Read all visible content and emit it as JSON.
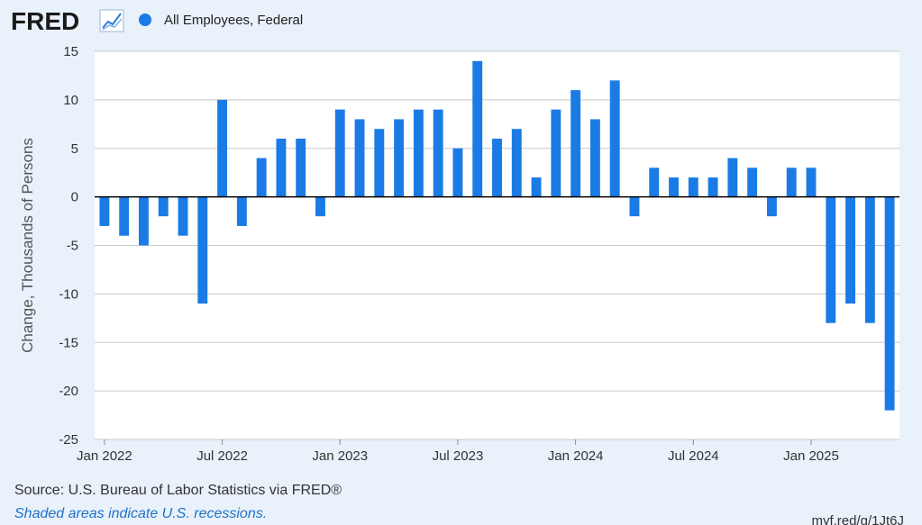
{
  "header": {
    "logo": "FRED",
    "logo_icon": "line-chart-icon",
    "legend_label": "All Employees, Federal",
    "legend_color": "#1a7be5"
  },
  "footer": {
    "source": "Source: U.S. Bureau of Labor Statistics via FRED®",
    "recessions_note": "Shaded areas indicate U.S. recessions.",
    "short_url": "myf.red/g/1Jt6J"
  },
  "chart_data": {
    "type": "bar",
    "title": "",
    "xlabel": "",
    "ylabel": "Change, Thousands of Persons",
    "ylim": [
      -25,
      15
    ],
    "yticks": [
      15,
      10,
      5,
      0,
      -5,
      -10,
      -15,
      -20,
      -25
    ],
    "xtick_labels": [
      "Jan 2022",
      "Jul 2022",
      "Jan 2023",
      "Jul 2023",
      "Jan 2024",
      "Jul 2024",
      "Jan 2025"
    ],
    "xtick_months": [
      "2022-01",
      "2022-07",
      "2023-01",
      "2023-07",
      "2024-01",
      "2024-07",
      "2025-01"
    ],
    "grid": true,
    "bar_color": "#1a7be5",
    "series": [
      {
        "name": "All Employees, Federal",
        "x": [
          "2022-01",
          "2022-02",
          "2022-03",
          "2022-04",
          "2022-05",
          "2022-06",
          "2022-07",
          "2022-08",
          "2022-09",
          "2022-10",
          "2022-11",
          "2022-12",
          "2023-01",
          "2023-02",
          "2023-03",
          "2023-04",
          "2023-05",
          "2023-06",
          "2023-07",
          "2023-08",
          "2023-09",
          "2023-10",
          "2023-11",
          "2023-12",
          "2024-01",
          "2024-02",
          "2024-03",
          "2024-04",
          "2024-05",
          "2024-06",
          "2024-07",
          "2024-08",
          "2024-09",
          "2024-10",
          "2024-11",
          "2024-12",
          "2025-01",
          "2025-02",
          "2025-03",
          "2025-04",
          "2025-05"
        ],
        "values": [
          -3,
          -4,
          -5,
          -2,
          -4,
          -11,
          10,
          -3,
          4,
          6,
          6,
          -2,
          9,
          8,
          7,
          8,
          9,
          9,
          5,
          14,
          6,
          7,
          2,
          9,
          11,
          8,
          12,
          -2,
          3,
          2,
          2,
          2,
          4,
          3,
          -2,
          3,
          3,
          -13,
          -11,
          -13,
          -22
        ]
      }
    ]
  }
}
